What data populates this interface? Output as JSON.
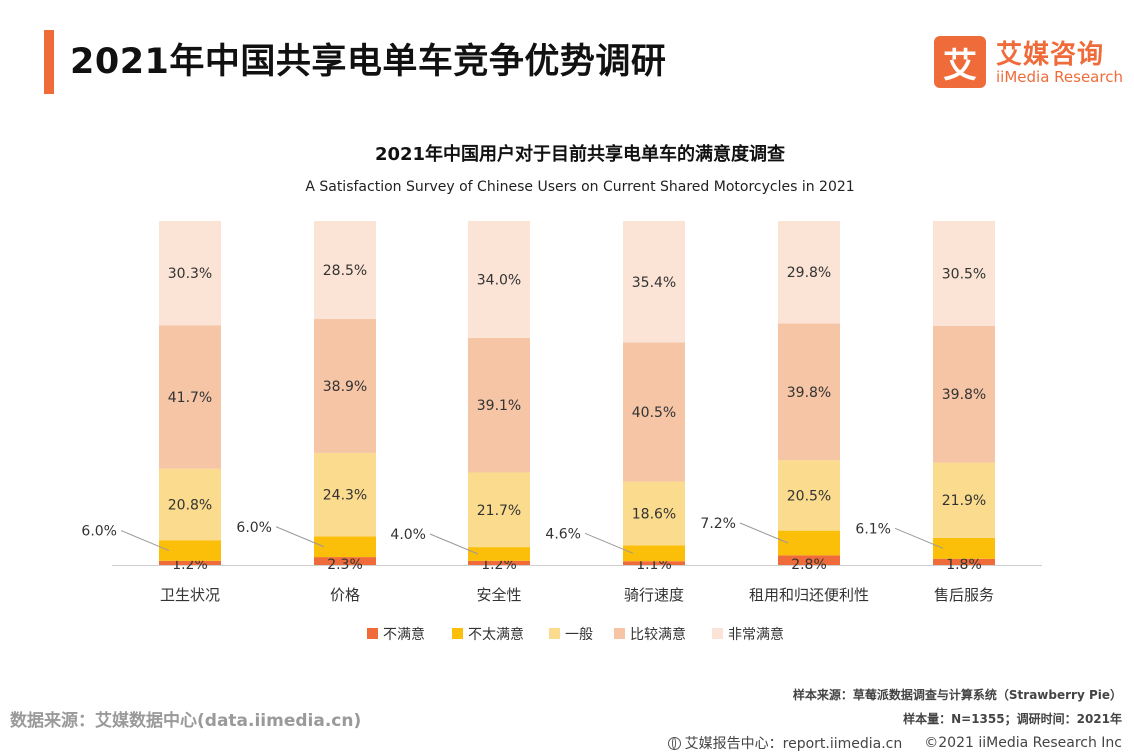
{
  "page": {
    "title": "2021年中国共享电单车竞争优势调研"
  },
  "logo": {
    "mark": "艾",
    "name_cn": "艾媒咨询",
    "name_en": "iiMedia Research"
  },
  "colors": {
    "accent": "#ef6c3a",
    "series": [
      "#ef6c3a",
      "#fbbf09",
      "#fbdc8e",
      "#f5c5a6",
      "#fbe4d5"
    ]
  },
  "chart_data": {
    "type": "bar",
    "stacked": true,
    "normalized_percent": true,
    "title": "2021年中国用户对于目前共享电单车的满意度调查",
    "subtitle": "A Satisfaction Survey of Chinese Users on Current Shared Motorcycles in 2021",
    "categories": [
      "卫生状况",
      "价格",
      "安全性",
      "骑行速度",
      "租用和归还便利性",
      "售后服务"
    ],
    "series": [
      {
        "name": "不满意",
        "values": [
          1.2,
          2.3,
          1.2,
          1.1,
          2.8,
          1.8
        ]
      },
      {
        "name": "不太满意",
        "values": [
          6.0,
          6.0,
          4.0,
          4.6,
          7.2,
          6.1
        ]
      },
      {
        "name": "一般",
        "values": [
          20.8,
          24.3,
          21.7,
          18.6,
          20.5,
          21.9
        ]
      },
      {
        "name": "比较满意",
        "values": [
          41.7,
          38.9,
          39.1,
          40.5,
          39.8,
          39.8
        ]
      },
      {
        "name": "非常满意",
        "values": [
          30.3,
          28.5,
          34.0,
          35.4,
          29.8,
          30.5
        ]
      }
    ],
    "value_suffix": "%",
    "ylim": [
      0,
      100
    ],
    "grid": false,
    "legend_position": "bottom",
    "callout_series": "不太满意"
  },
  "sources": {
    "data_source": "数据来源：艾媒数据中心(data.iimedia.cn)",
    "sample_source": "样本来源：草莓派数据调查与计算系统（Strawberry Pie）",
    "sample_info": "样本量：N=1355；调研时间：2021年"
  },
  "footer": {
    "center": "艾媒报告中心：report.iimedia.cn",
    "copyright": "©2021  iiMedia Research  Inc"
  }
}
